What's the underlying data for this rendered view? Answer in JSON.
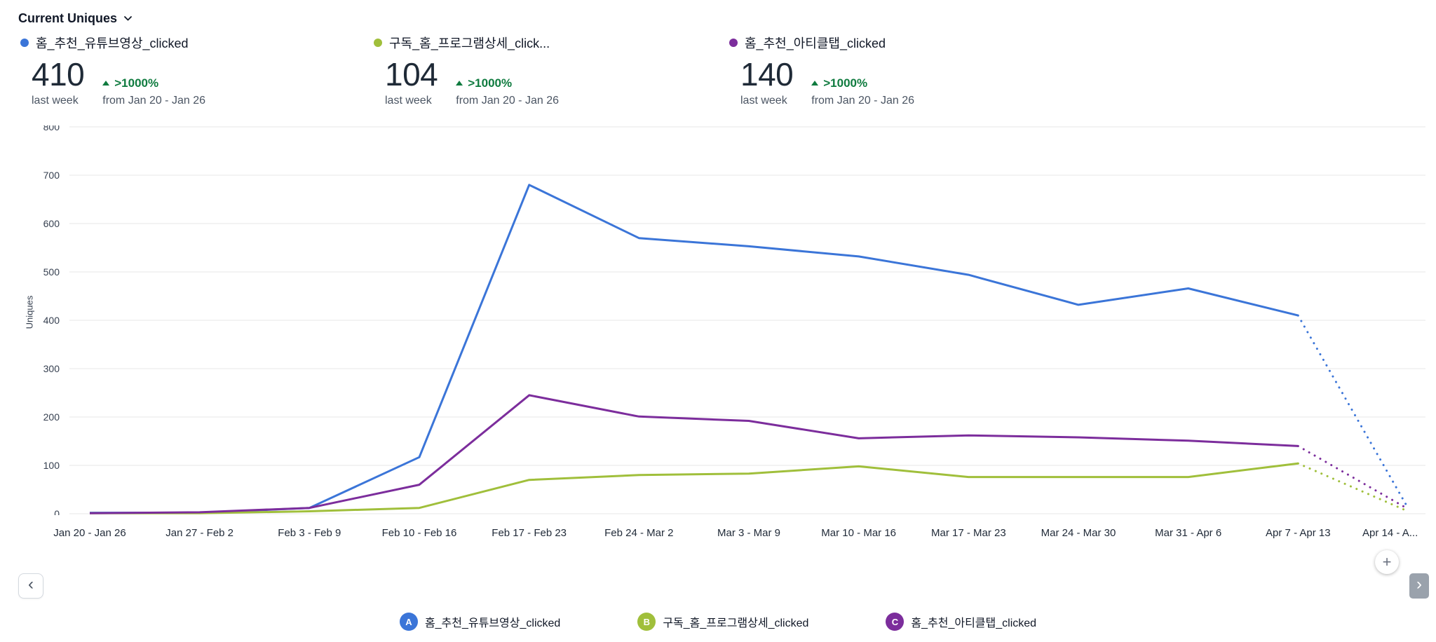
{
  "header": {
    "metric_label": "Current Uniques"
  },
  "colors": {
    "positive": "#0f7b3f",
    "grid": "#e7e7e7",
    "axis_text": "#374151",
    "text": "#111827"
  },
  "summaries": [
    {
      "label": "홈_추천_유튜브영상_clicked",
      "value": "410",
      "period": "last week",
      "change": ">1000%",
      "change_from": "from Jan 20 - Jan 26",
      "color": "#3b75d8"
    },
    {
      "label": "구독_홈_프로그램상세_click...",
      "value": "104",
      "period": "last week",
      "change": ">1000%",
      "change_from": "from Jan 20 - Jan 26",
      "color": "#a0bf3b"
    },
    {
      "label": "홈_추천_아티클탭_clicked",
      "value": "140",
      "period": "last week",
      "change": ">1000%",
      "change_from": "from Jan 20 - Jan 26",
      "color": "#7c2d9c"
    }
  ],
  "chart_data": {
    "type": "line",
    "ylabel": "Uniques",
    "ylim": [
      0,
      800
    ],
    "yticks": [
      0,
      100,
      200,
      300,
      400,
      500,
      600,
      700,
      800
    ],
    "grid": true,
    "categories": [
      "Jan 20 - Jan 26",
      "Jan 27 - Feb 2",
      "Feb 3 - Feb 9",
      "Feb 10 - Feb 16",
      "Feb 17 - Feb 23",
      "Feb 24 - Mar 2",
      "Mar 3 - Mar 9",
      "Mar 10 - Mar 16",
      "Mar 17 - Mar 23",
      "Mar 24 - Mar 30",
      "Mar 31 - Apr 6",
      "Apr 7 - Apr 13",
      "Apr 14 - A..."
    ],
    "dotted_from_index": 11,
    "series": [
      {
        "name": "홈_추천_유튜브영상_clicked",
        "color": "#3b75d8",
        "values": [
          2,
          2,
          12,
          117,
          680,
          570,
          553,
          532,
          494,
          432,
          466,
          410,
          12
        ]
      },
      {
        "name": "구독_홈_프로그램상세_clicked",
        "color": "#a0bf3b",
        "values": [
          1,
          1,
          5,
          12,
          70,
          80,
          83,
          98,
          76,
          76,
          76,
          104,
          5
        ]
      },
      {
        "name": "홈_추천_아티클탭_clicked",
        "color": "#7c2d9c",
        "values": [
          1,
          3,
          12,
          60,
          245,
          201,
          192,
          156,
          162,
          158,
          151,
          140,
          10
        ]
      }
    ]
  },
  "legend": [
    {
      "letter": "A",
      "label": "홈_추천_유튜브영상_clicked",
      "color": "#3b75d8"
    },
    {
      "letter": "B",
      "label": "구독_홈_프로그램상세_clicked",
      "color": "#a0bf3b"
    },
    {
      "letter": "C",
      "label": "홈_추천_아티클탭_clicked",
      "color": "#7c2d9c"
    }
  ],
  "controls": {
    "prev_icon": "‹",
    "next_icon": "›",
    "add_label": "+"
  }
}
